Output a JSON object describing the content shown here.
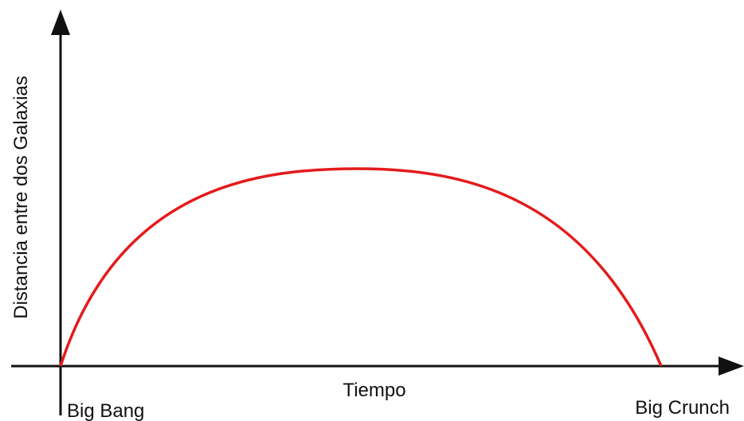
{
  "axes": {
    "y_label": "Distancia entre dos Galaxias",
    "x_label": "Tiempo"
  },
  "labels": {
    "start": "Big Bang",
    "end": "Big Crunch"
  }
}
